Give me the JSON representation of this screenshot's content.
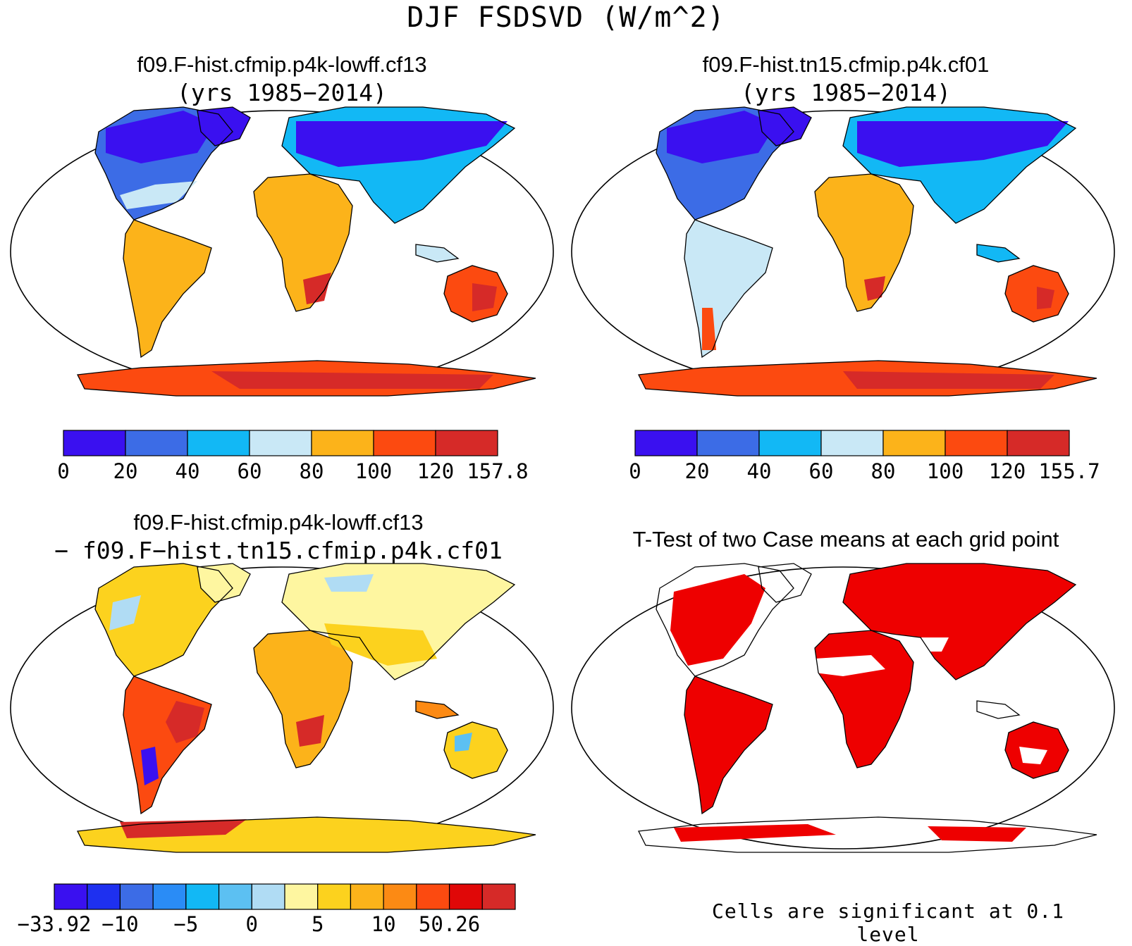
{
  "figure": {
    "title": "DJF FSDSVD (W/m^2)",
    "footer_note": "Cells are significant at 0.1 level"
  },
  "panels": [
    {
      "id": "case1",
      "title_line1": "f09.F-hist.cfmip.p4k-lowff.cf13",
      "title_line2": "(yrs 1985−2014)",
      "colorbar": {
        "colors": [
          "#3a10f0",
          "#3c6ce6",
          "#12b8f5",
          "#c9e8f6",
          "#fcb31a",
          "#fc4a10",
          "#d62a28"
        ],
        "labels": [
          "0",
          "20",
          "40",
          "60",
          "80",
          "100",
          "120",
          "157.8"
        ]
      }
    },
    {
      "id": "case2",
      "title_line1": "f09.F-hist.tn15.cfmip.p4k.cf01",
      "title_line2": "(yrs 1985−2014)",
      "colorbar": {
        "colors": [
          "#3a10f0",
          "#3c6ce6",
          "#12b8f5",
          "#c9e8f6",
          "#fcb31a",
          "#fc4a10",
          "#d62a28"
        ],
        "labels": [
          "0",
          "20",
          "40",
          "60",
          "80",
          "100",
          "120",
          "155.7"
        ]
      }
    },
    {
      "id": "diff",
      "title_line1": "f09.F-hist.cfmip.p4k-lowff.cf13",
      "title_line2": "− f09.F−hist.tn15.cfmip.p4k.cf01",
      "colorbar": {
        "colors": [
          "#3a10f0",
          "#1e30f0",
          "#3c6ce6",
          "#2a8cf6",
          "#12b8f5",
          "#5cc0f2",
          "#b0dcf4",
          "#fef6a0",
          "#fcd21e",
          "#fcb31a",
          "#fc8a14",
          "#fc4a10",
          "#e00808",
          "#d62a28"
        ],
        "labels": [
          "−33.92",
          "−10",
          "−5",
          "0",
          "5",
          "10",
          "50.26"
        ]
      }
    },
    {
      "id": "ttest",
      "title_line1": "T-Test of two Case means at each grid point",
      "significant_color": "#ee0000"
    }
  ]
}
